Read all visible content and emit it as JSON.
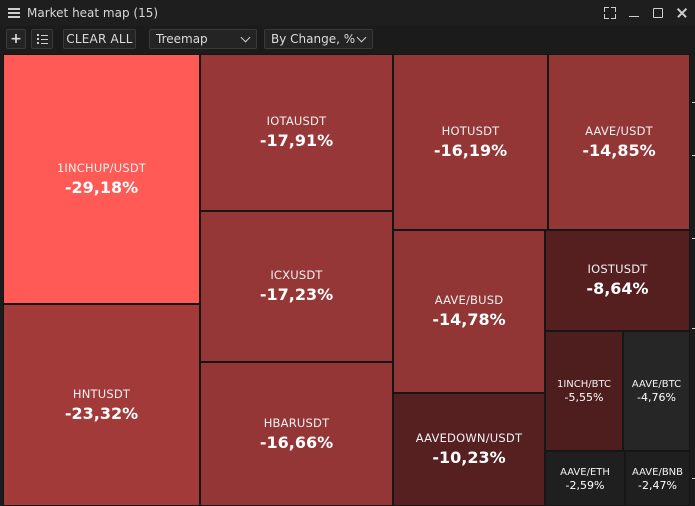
{
  "window": {
    "title": "Market heat map (15)",
    "icons": [
      "menu-icon",
      "expand-icon",
      "minimize-icon",
      "maximize-icon",
      "close-icon"
    ]
  },
  "toolbar": {
    "add_label": "+",
    "clear_label": "CLEAR ALL",
    "view_select": "Treemap",
    "sort_select": "By Change, %"
  },
  "tiles": [
    {
      "symbol": "1INCHUP/USDT",
      "change": "-29,18%",
      "color": "#ff5a55"
    },
    {
      "symbol": "HNTUSDT",
      "change": "-23,32%",
      "color": "#a33a3a"
    },
    {
      "symbol": "IOTAUSDT",
      "change": "-17,91%",
      "color": "#973737"
    },
    {
      "symbol": "ICXUSDT",
      "change": "-17,23%",
      "color": "#963737"
    },
    {
      "symbol": "HBARUSDT",
      "change": "-16,66%",
      "color": "#953636"
    },
    {
      "symbol": "HOTUSDT",
      "change": "-16,19%",
      "color": "#943636"
    },
    {
      "symbol": "AAVE/USDT",
      "change": "-14,85%",
      "color": "#933636"
    },
    {
      "symbol": "AAVE/BUSD",
      "change": "-14,78%",
      "color": "#923535"
    },
    {
      "symbol": "AAVEDOWN/USDT",
      "change": "-10,23%",
      "color": "#562020"
    },
    {
      "symbol": "IOSTUSDT",
      "change": "-8,64%",
      "color": "#551f1f"
    },
    {
      "symbol": "1INCH/BTC",
      "change": "-5,55%",
      "color": "#4e1d1d"
    },
    {
      "symbol": "AAVE/BTC",
      "change": "-4,76%",
      "color": "#262626"
    },
    {
      "symbol": "AAVE/ETH",
      "change": "-2,59%",
      "color": "#1f1f1f"
    },
    {
      "symbol": "AAVE/BNB",
      "change": "-2,47%",
      "color": "#1f1f1f"
    }
  ]
}
